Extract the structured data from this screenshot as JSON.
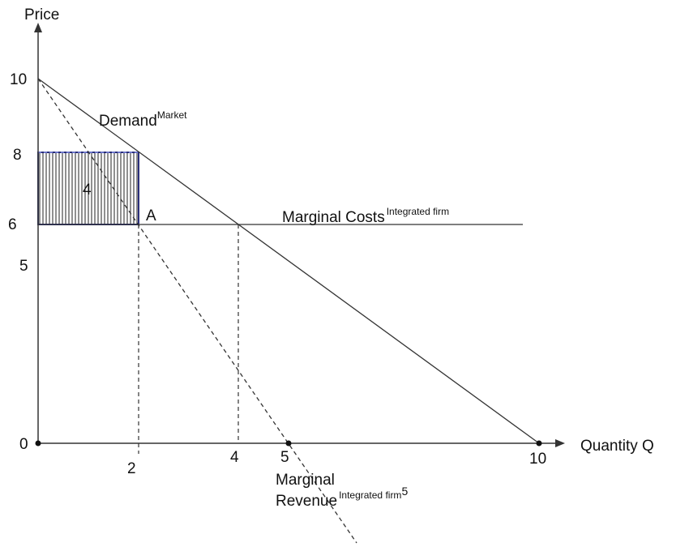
{
  "axes": {
    "y_label": "Price",
    "x_label": "Quantity Q",
    "y_ticks": [
      "10",
      "8",
      "6",
      "5",
      "0"
    ],
    "x_ticks": [
      "2",
      "4",
      "5",
      "10"
    ]
  },
  "curves": {
    "demand": {
      "label": "Demand",
      "superscript": "Market"
    },
    "marginal_cost": {
      "label": "Marginal Costs",
      "superscript": "Integrated firm"
    },
    "marginal_revenue": {
      "label_line1": "Marginal",
      "label_line2": "Revenue",
      "superscript": "Integrated firm",
      "footnote": "5"
    }
  },
  "area_label": "4",
  "point_label": "A"
}
